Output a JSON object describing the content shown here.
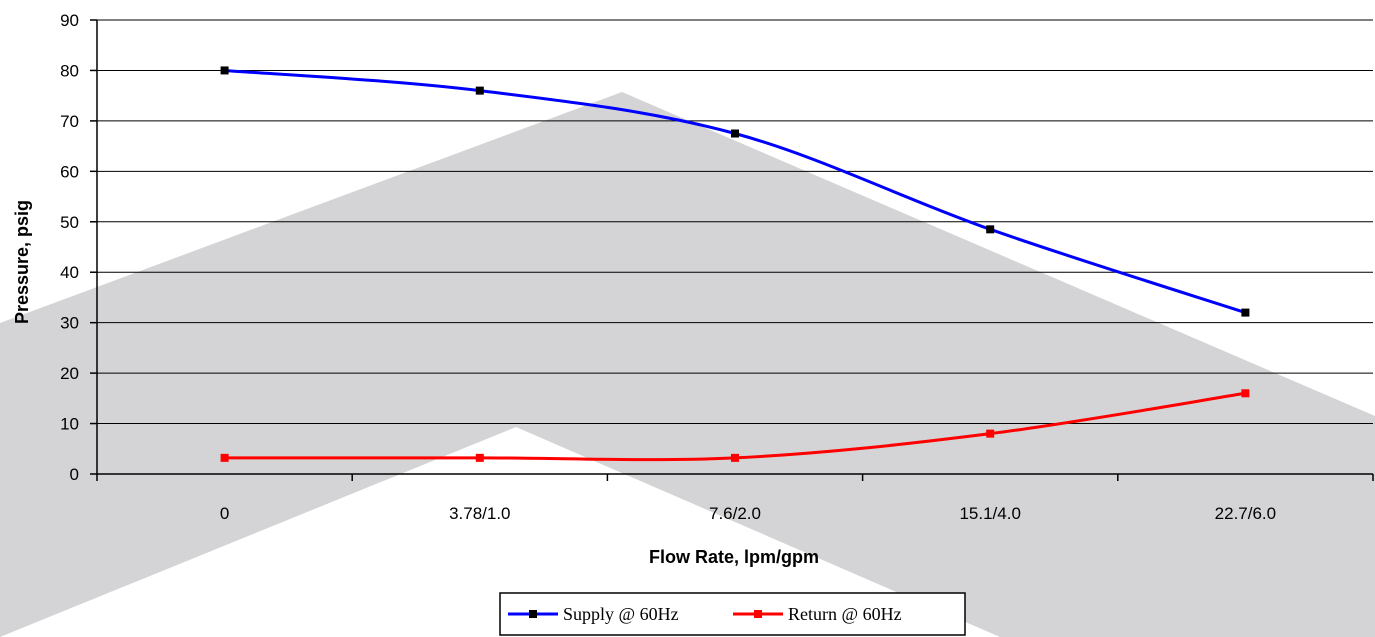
{
  "chart_data": {
    "type": "line",
    "xlabel": "Flow Rate, lpm/gpm",
    "ylabel": "Pressure, psig",
    "categories": [
      "0",
      "3.78/1.0",
      "7.6/2.0",
      "15.1/4.0",
      "22.7/6.0"
    ],
    "ylim": [
      0,
      90
    ],
    "yticks": [
      0,
      10,
      20,
      30,
      40,
      50,
      60,
      70,
      80,
      90
    ],
    "grid": "horizontal",
    "legend_position": "bottom-center",
    "series": [
      {
        "name": "Supply @ 60Hz",
        "color": "#0000ff",
        "values": [
          80,
          76,
          67.5,
          48.5,
          32
        ]
      },
      {
        "name": "Return @ 60Hz",
        "color": "#ff0000",
        "values": [
          3.2,
          3.2,
          3.2,
          8,
          16
        ]
      }
    ]
  },
  "colors": {
    "watermark": "#d4d4d6",
    "axis": "#000000",
    "marker": "#000000"
  }
}
